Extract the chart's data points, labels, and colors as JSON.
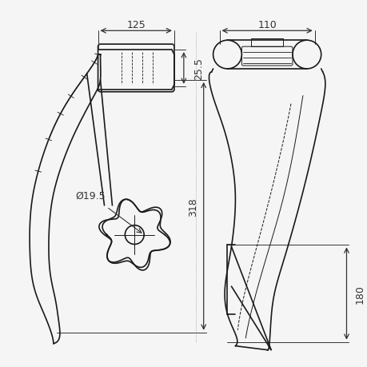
{
  "bg_color": "#f5f5f5",
  "line_color": "#1a1a1a",
  "dim_color": "#333333",
  "title": "",
  "dim_125": "125",
  "dim_110": "110",
  "dim_25_5": "25.5",
  "dim_318": "318",
  "dim_180": "180",
  "dim_hole": "Ø19.5",
  "figsize": [
    4.6,
    4.6
  ],
  "dpi": 100
}
